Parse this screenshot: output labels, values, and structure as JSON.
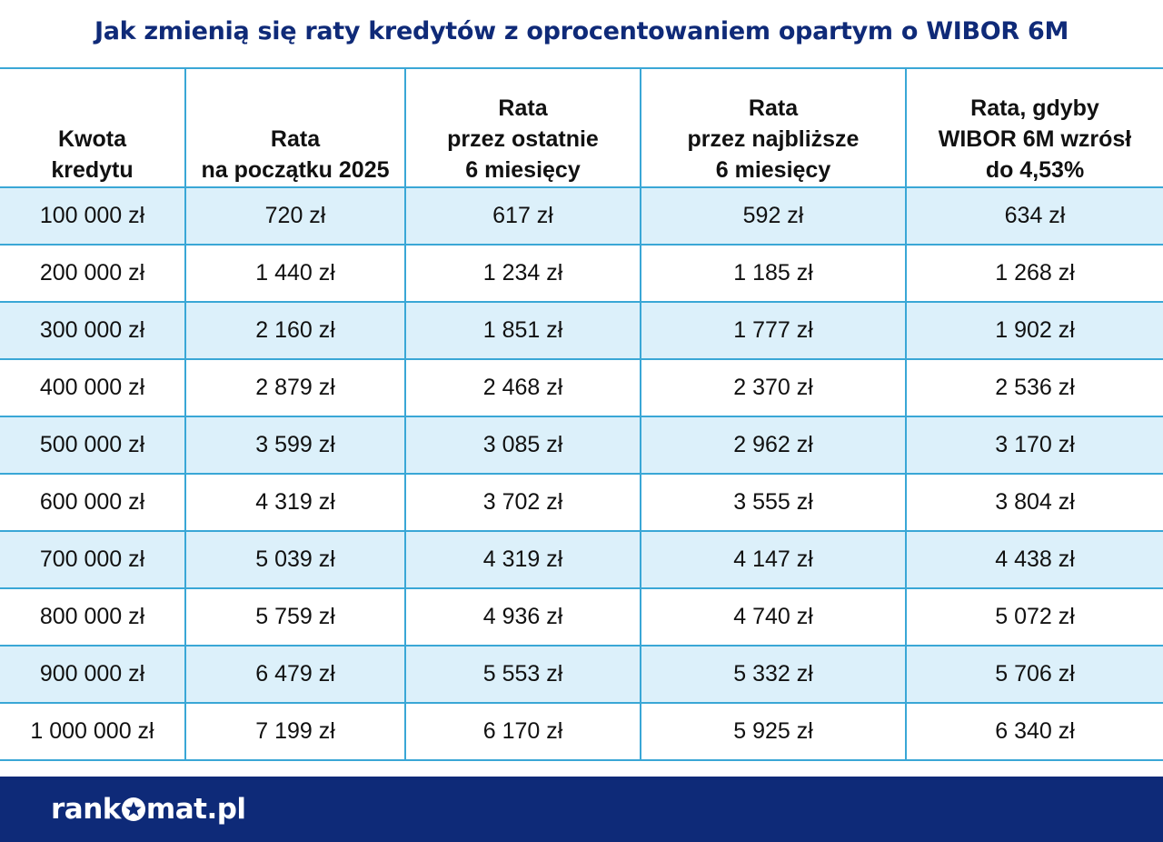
{
  "title": "Jak zmienią się raty kredytów z oprocentowaniem opartym o WIBOR 6M",
  "chart_data": {
    "type": "table",
    "columns": [
      [
        "Kwota",
        "kredytu"
      ],
      [
        "Rata",
        "na początku 2025"
      ],
      [
        "Rata",
        "przez ostatnie",
        "6 miesięcy"
      ],
      [
        "Rata",
        "przez najbliższe",
        "6 miesięcy"
      ],
      [
        "Rata, gdyby",
        "WIBOR 6M wzrósł",
        "do 4,53%"
      ]
    ],
    "rows": [
      [
        "100 000 zł",
        "720 zł",
        "617 zł",
        "592 zł",
        "634 zł"
      ],
      [
        "200 000 zł",
        "1 440 zł",
        "1 234 zł",
        "1 185 zł",
        "1 268 zł"
      ],
      [
        "300 000 zł",
        "2 160 zł",
        "1 851 zł",
        "1 777 zł",
        "1 902 zł"
      ],
      [
        "400 000 zł",
        "2 879 zł",
        "2 468 zł",
        "2 370 zł",
        "2 536 zł"
      ],
      [
        "500 000 zł",
        "3 599 zł",
        "3 085 zł",
        "2 962 zł",
        "3 170 zł"
      ],
      [
        "600 000 zł",
        "4 319 zł",
        "3 702 zł",
        "3 555 zł",
        "3 804 zł"
      ],
      [
        "700 000 zł",
        "5 039 zł",
        "4 319 zł",
        "4 147 zł",
        "4 438 zł"
      ],
      [
        "800 000 zł",
        "5 759 zł",
        "4 936 zł",
        "4 740 zł",
        "5 072 zł"
      ],
      [
        "900 000 zł",
        "6 479 zł",
        "5 553 zł",
        "5 332 zł",
        "5 706 zł"
      ],
      [
        "1 000 000 zł",
        "7 199 zł",
        "6 170 zł",
        "5 925 zł",
        "6 340 zł"
      ]
    ]
  },
  "footer": {
    "logo_part1": "rank",
    "logo_part2": "mat.pl",
    "logo_icon": "star-icon"
  },
  "colors": {
    "title": "#0f2a78",
    "grid": "#3aa7d6",
    "row_alt": "#dcf0fa",
    "footer_bg": "#0e2a78"
  }
}
